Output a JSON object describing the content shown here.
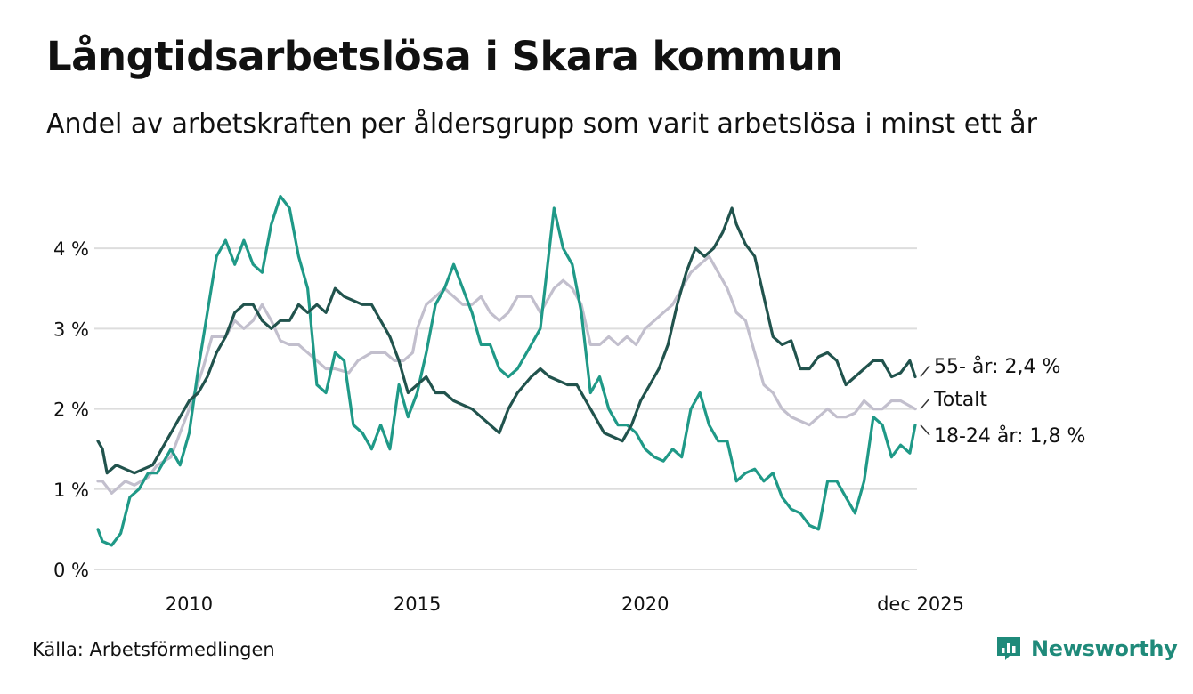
{
  "title": "Långtidsarbetslösa i Skara kommun",
  "subtitle": "Andel av arbetskraften per åldersgrupp som varit arbetslösa i minst ett år",
  "source": "Källa: Arbetsförmedlingen",
  "brand": "Newsworthy",
  "colors": {
    "total": "#c2bfcd",
    "age55": "#21534d",
    "age18_24": "#1f9987",
    "grid": "#dddddd",
    "brand": "#1f8a7a"
  },
  "chart_data": {
    "type": "line",
    "title": "Långtidsarbetslösa i Skara kommun",
    "xlabel": "",
    "ylabel": "",
    "ylim": [
      0,
      4.6
    ],
    "xlim": [
      2008.0,
      2025.92
    ],
    "x_ticks": [
      {
        "value": 2010,
        "label": "2010"
      },
      {
        "value": 2015,
        "label": "2015"
      },
      {
        "value": 2020,
        "label": "2020"
      },
      {
        "value": 2025.92,
        "label": "dec 2025"
      }
    ],
    "y_ticks": [
      {
        "value": 0,
        "label": "0 %"
      },
      {
        "value": 1,
        "label": "1 %"
      },
      {
        "value": 2,
        "label": "2 %"
      },
      {
        "value": 3,
        "label": "3 %"
      },
      {
        "value": 4,
        "label": "4 %"
      }
    ],
    "series": [
      {
        "key": "total",
        "name": "Totalt",
        "end_label": "Totalt",
        "points": [
          [
            2008.0,
            1.1
          ],
          [
            2008.1,
            1.1
          ],
          [
            2008.3,
            0.95
          ],
          [
            2008.6,
            1.1
          ],
          [
            2008.8,
            1.05
          ],
          [
            2009.1,
            1.15
          ],
          [
            2009.3,
            1.3
          ],
          [
            2009.6,
            1.4
          ],
          [
            2009.8,
            1.7
          ],
          [
            2010.0,
            2.0
          ],
          [
            2010.3,
            2.5
          ],
          [
            2010.5,
            2.9
          ],
          [
            2010.8,
            2.9
          ],
          [
            2011.0,
            3.1
          ],
          [
            2011.2,
            3.0
          ],
          [
            2011.4,
            3.1
          ],
          [
            2011.6,
            3.3
          ],
          [
            2011.8,
            3.1
          ],
          [
            2012.0,
            2.85
          ],
          [
            2012.2,
            2.8
          ],
          [
            2012.4,
            2.8
          ],
          [
            2012.6,
            2.7
          ],
          [
            2012.8,
            2.6
          ],
          [
            2013.0,
            2.5
          ],
          [
            2013.2,
            2.5
          ],
          [
            2013.5,
            2.45
          ],
          [
            2013.7,
            2.6
          ],
          [
            2014.0,
            2.7
          ],
          [
            2014.3,
            2.7
          ],
          [
            2014.5,
            2.6
          ],
          [
            2014.7,
            2.6
          ],
          [
            2014.9,
            2.7
          ],
          [
            2015.0,
            3.0
          ],
          [
            2015.2,
            3.3
          ],
          [
            2015.4,
            3.4
          ],
          [
            2015.6,
            3.5
          ],
          [
            2015.8,
            3.4
          ],
          [
            2016.0,
            3.3
          ],
          [
            2016.2,
            3.3
          ],
          [
            2016.4,
            3.4
          ],
          [
            2016.6,
            3.2
          ],
          [
            2016.8,
            3.1
          ],
          [
            2017.0,
            3.2
          ],
          [
            2017.2,
            3.4
          ],
          [
            2017.5,
            3.4
          ],
          [
            2017.7,
            3.2
          ],
          [
            2018.0,
            3.5
          ],
          [
            2018.2,
            3.6
          ],
          [
            2018.4,
            3.5
          ],
          [
            2018.6,
            3.3
          ],
          [
            2018.8,
            2.8
          ],
          [
            2019.0,
            2.8
          ],
          [
            2019.2,
            2.9
          ],
          [
            2019.4,
            2.8
          ],
          [
            2019.6,
            2.9
          ],
          [
            2019.8,
            2.8
          ],
          [
            2020.0,
            3.0
          ],
          [
            2020.2,
            3.1
          ],
          [
            2020.4,
            3.2
          ],
          [
            2020.6,
            3.3
          ],
          [
            2020.8,
            3.5
          ],
          [
            2021.0,
            3.7
          ],
          [
            2021.2,
            3.8
          ],
          [
            2021.4,
            3.9
          ],
          [
            2021.6,
            3.7
          ],
          [
            2021.8,
            3.5
          ],
          [
            2022.0,
            3.2
          ],
          [
            2022.2,
            3.1
          ],
          [
            2022.4,
            2.7
          ],
          [
            2022.6,
            2.3
          ],
          [
            2022.8,
            2.2
          ],
          [
            2023.0,
            2.0
          ],
          [
            2023.2,
            1.9
          ],
          [
            2023.4,
            1.85
          ],
          [
            2023.6,
            1.8
          ],
          [
            2023.8,
            1.9
          ],
          [
            2024.0,
            2.0
          ],
          [
            2024.2,
            1.9
          ],
          [
            2024.4,
            1.9
          ],
          [
            2024.6,
            1.95
          ],
          [
            2024.8,
            2.1
          ],
          [
            2025.0,
            2.0
          ],
          [
            2025.2,
            2.0
          ],
          [
            2025.4,
            2.1
          ],
          [
            2025.6,
            2.1
          ],
          [
            2025.92,
            2.0
          ]
        ]
      },
      {
        "key": "age18_24",
        "name": "18-24 år",
        "end_label": "18-24 år: 1,8 %",
        "points": [
          [
            2008.0,
            0.5
          ],
          [
            2008.1,
            0.35
          ],
          [
            2008.3,
            0.3
          ],
          [
            2008.5,
            0.45
          ],
          [
            2008.7,
            0.9
          ],
          [
            2008.9,
            1.0
          ],
          [
            2009.1,
            1.2
          ],
          [
            2009.3,
            1.2
          ],
          [
            2009.6,
            1.5
          ],
          [
            2009.8,
            1.3
          ],
          [
            2010.0,
            1.7
          ],
          [
            2010.2,
            2.5
          ],
          [
            2010.4,
            3.2
          ],
          [
            2010.6,
            3.9
          ],
          [
            2010.8,
            4.1
          ],
          [
            2011.0,
            3.8
          ],
          [
            2011.2,
            4.1
          ],
          [
            2011.4,
            3.8
          ],
          [
            2011.6,
            3.7
          ],
          [
            2011.8,
            4.3
          ],
          [
            2012.0,
            4.65
          ],
          [
            2012.2,
            4.5
          ],
          [
            2012.4,
            3.9
          ],
          [
            2012.6,
            3.5
          ],
          [
            2012.8,
            2.3
          ],
          [
            2013.0,
            2.2
          ],
          [
            2013.2,
            2.7
          ],
          [
            2013.4,
            2.6
          ],
          [
            2013.6,
            1.8
          ],
          [
            2013.8,
            1.7
          ],
          [
            2014.0,
            1.5
          ],
          [
            2014.2,
            1.8
          ],
          [
            2014.4,
            1.5
          ],
          [
            2014.6,
            2.3
          ],
          [
            2014.8,
            1.9
          ],
          [
            2015.0,
            2.2
          ],
          [
            2015.2,
            2.7
          ],
          [
            2015.4,
            3.3
          ],
          [
            2015.6,
            3.5
          ],
          [
            2015.8,
            3.8
          ],
          [
            2016.0,
            3.5
          ],
          [
            2016.2,
            3.2
          ],
          [
            2016.4,
            2.8
          ],
          [
            2016.6,
            2.8
          ],
          [
            2016.8,
            2.5
          ],
          [
            2017.0,
            2.4
          ],
          [
            2017.2,
            2.5
          ],
          [
            2017.5,
            2.8
          ],
          [
            2017.7,
            3.0
          ],
          [
            2018.0,
            4.5
          ],
          [
            2018.2,
            4.0
          ],
          [
            2018.4,
            3.8
          ],
          [
            2018.6,
            3.2
          ],
          [
            2018.8,
            2.2
          ],
          [
            2019.0,
            2.4
          ],
          [
            2019.2,
            2.0
          ],
          [
            2019.4,
            1.8
          ],
          [
            2019.6,
            1.8
          ],
          [
            2019.8,
            1.7
          ],
          [
            2020.0,
            1.5
          ],
          [
            2020.2,
            1.4
          ],
          [
            2020.4,
            1.35
          ],
          [
            2020.6,
            1.5
          ],
          [
            2020.8,
            1.4
          ],
          [
            2021.0,
            2.0
          ],
          [
            2021.2,
            2.2
          ],
          [
            2021.4,
            1.8
          ],
          [
            2021.6,
            1.6
          ],
          [
            2021.8,
            1.6
          ],
          [
            2022.0,
            1.1
          ],
          [
            2022.2,
            1.2
          ],
          [
            2022.4,
            1.25
          ],
          [
            2022.6,
            1.1
          ],
          [
            2022.8,
            1.2
          ],
          [
            2023.0,
            0.9
          ],
          [
            2023.2,
            0.75
          ],
          [
            2023.4,
            0.7
          ],
          [
            2023.6,
            0.55
          ],
          [
            2023.8,
            0.5
          ],
          [
            2024.0,
            1.1
          ],
          [
            2024.2,
            1.1
          ],
          [
            2024.4,
            0.9
          ],
          [
            2024.6,
            0.7
          ],
          [
            2024.8,
            1.1
          ],
          [
            2025.0,
            1.9
          ],
          [
            2025.2,
            1.8
          ],
          [
            2025.4,
            1.4
          ],
          [
            2025.6,
            1.55
          ],
          [
            2025.8,
            1.45
          ],
          [
            2025.92,
            1.8
          ]
        ]
      },
      {
        "key": "age55",
        "name": "55- år",
        "end_label": "55- år: 2,4 %",
        "points": [
          [
            2008.0,
            1.6
          ],
          [
            2008.1,
            1.5
          ],
          [
            2008.2,
            1.2
          ],
          [
            2008.4,
            1.3
          ],
          [
            2008.6,
            1.25
          ],
          [
            2008.8,
            1.2
          ],
          [
            2009.0,
            1.25
          ],
          [
            2009.2,
            1.3
          ],
          [
            2009.4,
            1.5
          ],
          [
            2009.6,
            1.7
          ],
          [
            2009.8,
            1.9
          ],
          [
            2010.0,
            2.1
          ],
          [
            2010.2,
            2.2
          ],
          [
            2010.4,
            2.4
          ],
          [
            2010.6,
            2.7
          ],
          [
            2010.8,
            2.9
          ],
          [
            2011.0,
            3.2
          ],
          [
            2011.2,
            3.3
          ],
          [
            2011.4,
            3.3
          ],
          [
            2011.6,
            3.1
          ],
          [
            2011.8,
            3.0
          ],
          [
            2012.0,
            3.1
          ],
          [
            2012.2,
            3.1
          ],
          [
            2012.4,
            3.3
          ],
          [
            2012.6,
            3.2
          ],
          [
            2012.8,
            3.3
          ],
          [
            2013.0,
            3.2
          ],
          [
            2013.2,
            3.5
          ],
          [
            2013.4,
            3.4
          ],
          [
            2013.6,
            3.35
          ],
          [
            2013.8,
            3.3
          ],
          [
            2014.0,
            3.3
          ],
          [
            2014.2,
            3.1
          ],
          [
            2014.4,
            2.9
          ],
          [
            2014.6,
            2.6
          ],
          [
            2014.8,
            2.2
          ],
          [
            2015.0,
            2.3
          ],
          [
            2015.2,
            2.4
          ],
          [
            2015.4,
            2.2
          ],
          [
            2015.6,
            2.2
          ],
          [
            2015.8,
            2.1
          ],
          [
            2016.0,
            2.05
          ],
          [
            2016.2,
            2.0
          ],
          [
            2016.4,
            1.9
          ],
          [
            2016.6,
            1.8
          ],
          [
            2016.8,
            1.7
          ],
          [
            2017.0,
            2.0
          ],
          [
            2017.2,
            2.2
          ],
          [
            2017.5,
            2.4
          ],
          [
            2017.7,
            2.5
          ],
          [
            2017.9,
            2.4
          ],
          [
            2018.1,
            2.35
          ],
          [
            2018.3,
            2.3
          ],
          [
            2018.5,
            2.3
          ],
          [
            2018.7,
            2.1
          ],
          [
            2018.9,
            1.9
          ],
          [
            2019.1,
            1.7
          ],
          [
            2019.3,
            1.65
          ],
          [
            2019.5,
            1.6
          ],
          [
            2019.7,
            1.8
          ],
          [
            2019.9,
            2.1
          ],
          [
            2020.1,
            2.3
          ],
          [
            2020.3,
            2.5
          ],
          [
            2020.5,
            2.8
          ],
          [
            2020.7,
            3.3
          ],
          [
            2020.9,
            3.7
          ],
          [
            2021.1,
            4.0
          ],
          [
            2021.3,
            3.9
          ],
          [
            2021.5,
            4.0
          ],
          [
            2021.7,
            4.2
          ],
          [
            2021.9,
            4.5
          ],
          [
            2022.0,
            4.3
          ],
          [
            2022.2,
            4.05
          ],
          [
            2022.4,
            3.9
          ],
          [
            2022.6,
            3.4
          ],
          [
            2022.8,
            2.9
          ],
          [
            2023.0,
            2.8
          ],
          [
            2023.2,
            2.85
          ],
          [
            2023.4,
            2.5
          ],
          [
            2023.6,
            2.5
          ],
          [
            2023.8,
            2.65
          ],
          [
            2024.0,
            2.7
          ],
          [
            2024.2,
            2.6
          ],
          [
            2024.4,
            2.3
          ],
          [
            2024.6,
            2.4
          ],
          [
            2024.8,
            2.5
          ],
          [
            2025.0,
            2.6
          ],
          [
            2025.2,
            2.6
          ],
          [
            2025.4,
            2.4
          ],
          [
            2025.6,
            2.45
          ],
          [
            2025.8,
            2.6
          ],
          [
            2025.92,
            2.4
          ]
        ]
      }
    ]
  }
}
